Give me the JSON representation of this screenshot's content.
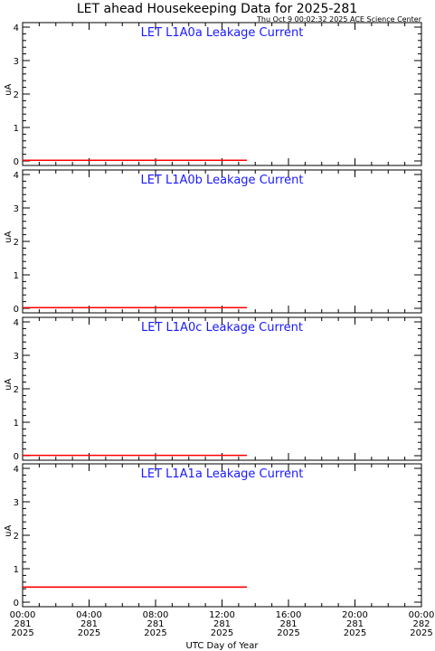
{
  "header": {
    "title": "LET ahead Housekeeping Data for 2025-281",
    "timestamp": "Thu Oct  9 00:02:32 2025 ACE Science Center"
  },
  "chart_data": [
    {
      "type": "line",
      "title": "LET L1A0a Leakage Current",
      "ylabel": "uA",
      "ylim": [
        0,
        4
      ],
      "xlim": [
        0,
        24
      ],
      "y_ticks": [
        "0",
        "1",
        "2",
        "3",
        "4"
      ],
      "series": [
        {
          "x": [
            0,
            13.5
          ],
          "values": [
            0.02,
            0.02
          ],
          "color": "#ff0000"
        }
      ]
    },
    {
      "type": "line",
      "title": "LET L1A0b Leakage Current",
      "ylabel": "uA",
      "ylim": [
        0,
        4
      ],
      "xlim": [
        0,
        24
      ],
      "y_ticks": [
        "0",
        "1",
        "2",
        "3",
        "4"
      ],
      "series": [
        {
          "x": [
            0,
            13.5
          ],
          "values": [
            0.02,
            0.02
          ],
          "color": "#ff0000"
        }
      ]
    },
    {
      "type": "line",
      "title": "LET L1A0c Leakage Current",
      "ylabel": "uA",
      "ylim": [
        0,
        4
      ],
      "xlim": [
        0,
        24
      ],
      "y_ticks": [
        "0",
        "1",
        "2",
        "3",
        "4"
      ],
      "series": [
        {
          "x": [
            0,
            13.5
          ],
          "values": [
            0.01,
            0.01
          ],
          "color": "#ff0000"
        }
      ]
    },
    {
      "type": "line",
      "title": "LET L1A1a Leakage Current",
      "ylabel": "uA",
      "ylim": [
        0,
        4
      ],
      "xlim": [
        0,
        24
      ],
      "y_ticks": [
        "0",
        "1",
        "2",
        "3",
        "4"
      ],
      "xlabel": "UTC Day of Year",
      "x_ticks": [
        {
          "time": "00:00",
          "day": "281",
          "year": "2025"
        },
        {
          "time": "04:00",
          "day": "281",
          "year": "2025"
        },
        {
          "time": "08:00",
          "day": "281",
          "year": "2025"
        },
        {
          "time": "12:00",
          "day": "281",
          "year": "2025"
        },
        {
          "time": "16:00",
          "day": "281",
          "year": "2025"
        },
        {
          "time": "20:00",
          "day": "281",
          "year": "2025"
        },
        {
          "time": "00:00",
          "day": "282",
          "year": "2025"
        }
      ],
      "series": [
        {
          "x": [
            0,
            13.5
          ],
          "values": [
            0.45,
            0.45
          ],
          "color": "#ff0000"
        }
      ]
    }
  ]
}
